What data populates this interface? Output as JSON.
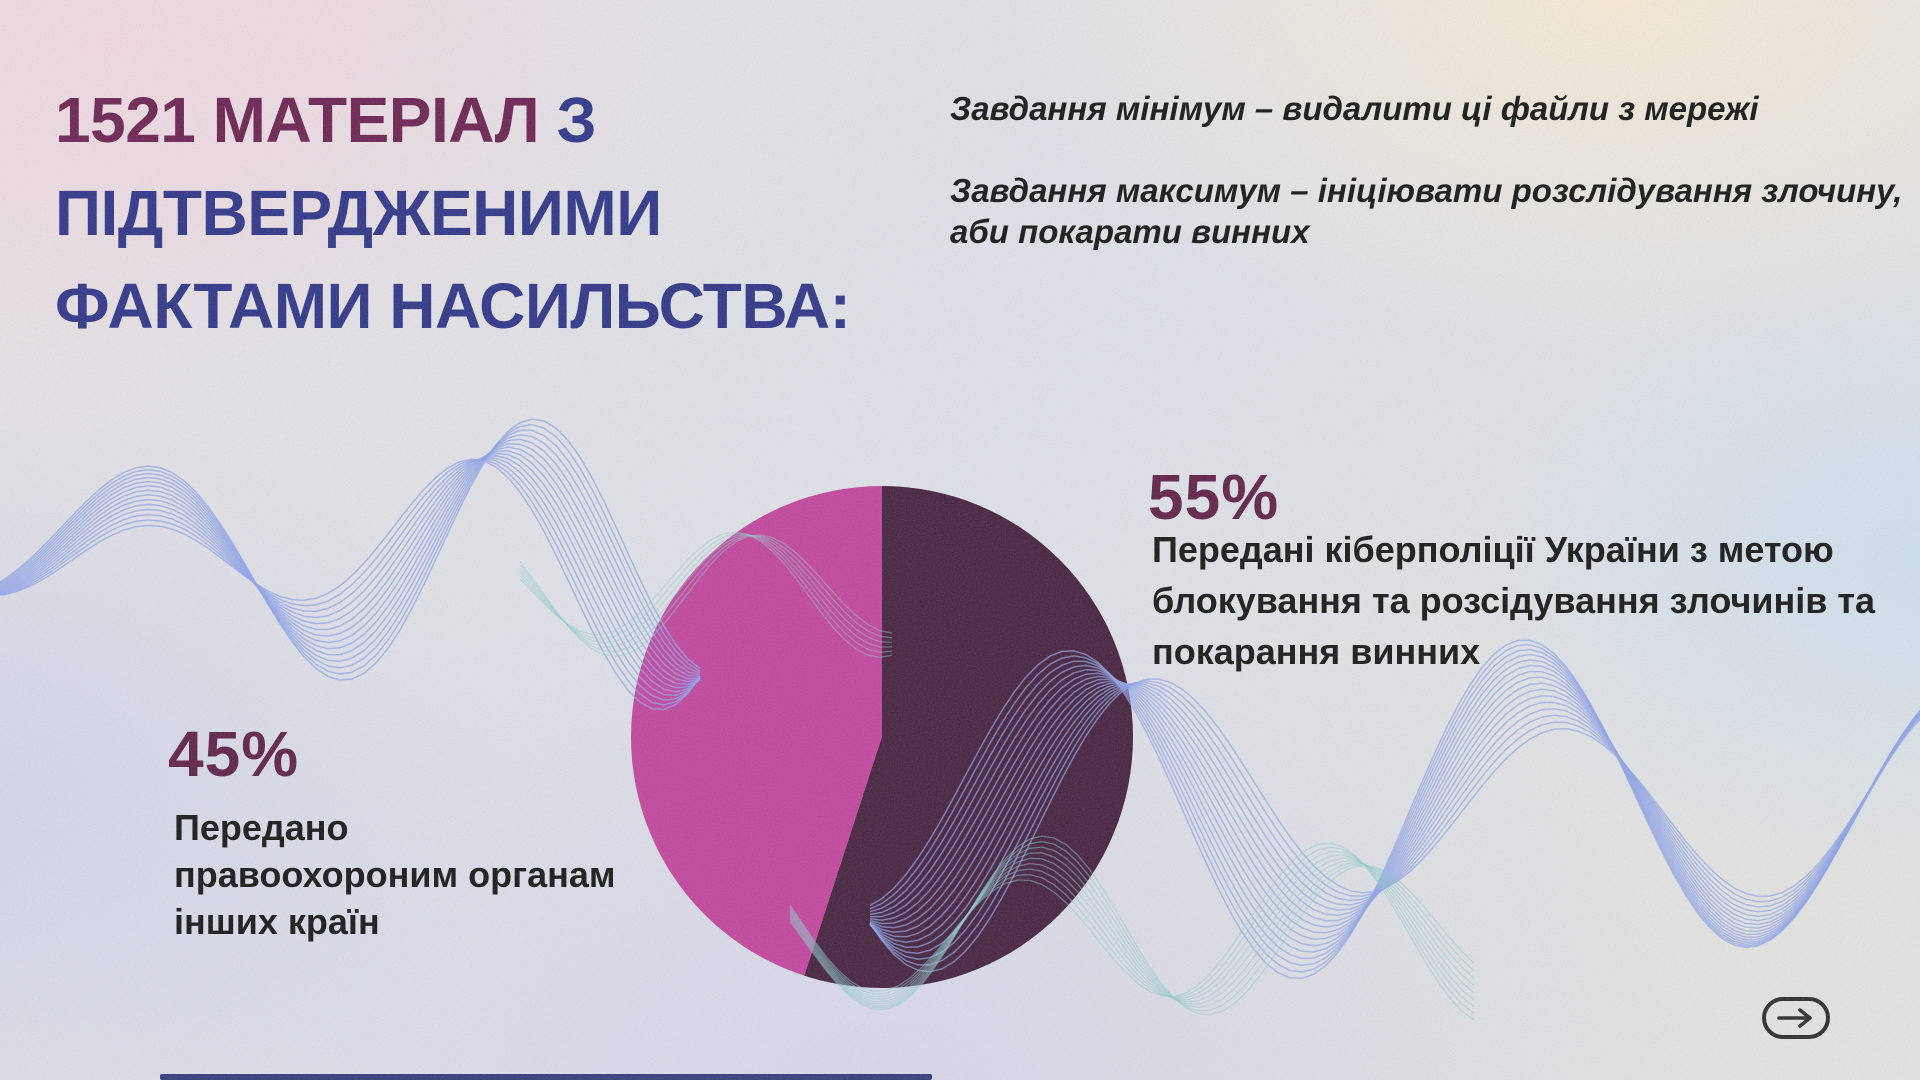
{
  "slide": {
    "title": {
      "highlight": "1521 МАТЕРІАЛ",
      "rest_line1": " З",
      "line2": "ПІДТВЕРДЖЕНИМИ",
      "line3": "ФАКТАМИ НАСИЛЬСТВА:"
    },
    "tasks": {
      "min_line": "Завдання мінімум – видалити ці файли з мережі",
      "max_line1": "Завдання максимум – ініціювати розслідування злочину,",
      "max_line2": "аби покарати винних"
    },
    "stat55": {
      "value": "55%",
      "desc_lines": [
        "Передані кіберполіції України з метою",
        "блокування та розсідування злочинів та",
        "покарання винних"
      ]
    },
    "stat45": {
      "value": "45%",
      "desc_lines": [
        "Передано",
        "правоохороним органам",
        "інших країн"
      ]
    },
    "icons": {
      "next": "arrow-right-in-pill"
    },
    "colors": {
      "title_accent": "#6b2151",
      "title_main": "#2e3487",
      "stat_label": "#5e2046",
      "pie_dark": "#44203c",
      "pie_pink": "#c2459e",
      "text": "#161616",
      "wave_blue": "#8ea4e8",
      "wave_teal": "#90cbcb",
      "icon": "#2b2b2b",
      "bottom_line": "#20286e"
    }
  },
  "chart_data": {
    "type": "pie",
    "title": "1521 МАТЕРІАЛ З ПІДТВЕРДЖЕНИМИ ФАКТАМИ НАСИЛЬСТВА:",
    "slices": [
      {
        "label": "Передані кіберполіції України з метою блокування та розсідування злочинів та покарання винних",
        "value": 55,
        "color": "#44203c"
      },
      {
        "label": "Передано правоохороним органам інших країн",
        "value": 45,
        "color": "#c2459e"
      }
    ],
    "start_angle_deg": 0,
    "direction": "clockwise",
    "legend_position": "labels-beside-slices",
    "grid": false
  }
}
